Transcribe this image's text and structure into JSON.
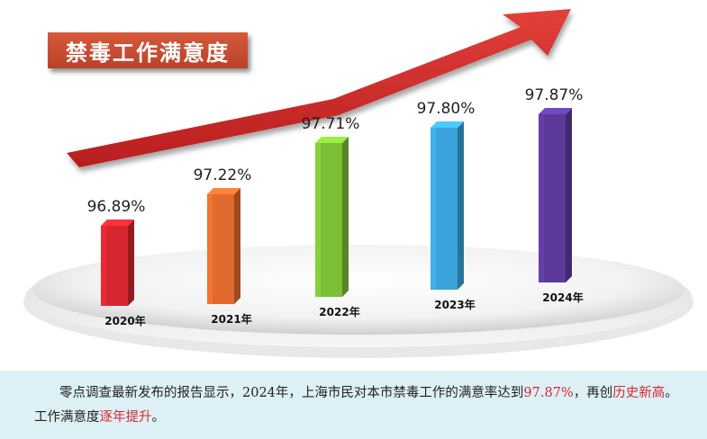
{
  "title": "禁毒工作满意度",
  "chart_data": {
    "type": "bar",
    "title": "禁毒工作满意度",
    "categories": [
      "2020年",
      "2021年",
      "2022年",
      "2023年",
      "2024年"
    ],
    "values": [
      96.89,
      97.22,
      97.71,
      97.8,
      97.87
    ],
    "value_labels": [
      "96.89%",
      "97.22%",
      "97.71%",
      "97.80%",
      "97.87%"
    ],
    "bar_colors": [
      "#d6272e",
      "#e06a2e",
      "#7bbf35",
      "#3aa3d9",
      "#5b3a9a"
    ],
    "ylim": [
      96.0,
      98.0
    ],
    "grid": false,
    "legend": "none"
  },
  "caption": {
    "p1": "零点调查最新发布的报告显示，2024年，上海市民对本市禁毒工作的满意率达到",
    "p2": "97.87%",
    "p3": "，再创",
    "p4": "历史新高",
    "p5": "。工作满意度",
    "p6": "逐年提升",
    "p7": "。"
  }
}
